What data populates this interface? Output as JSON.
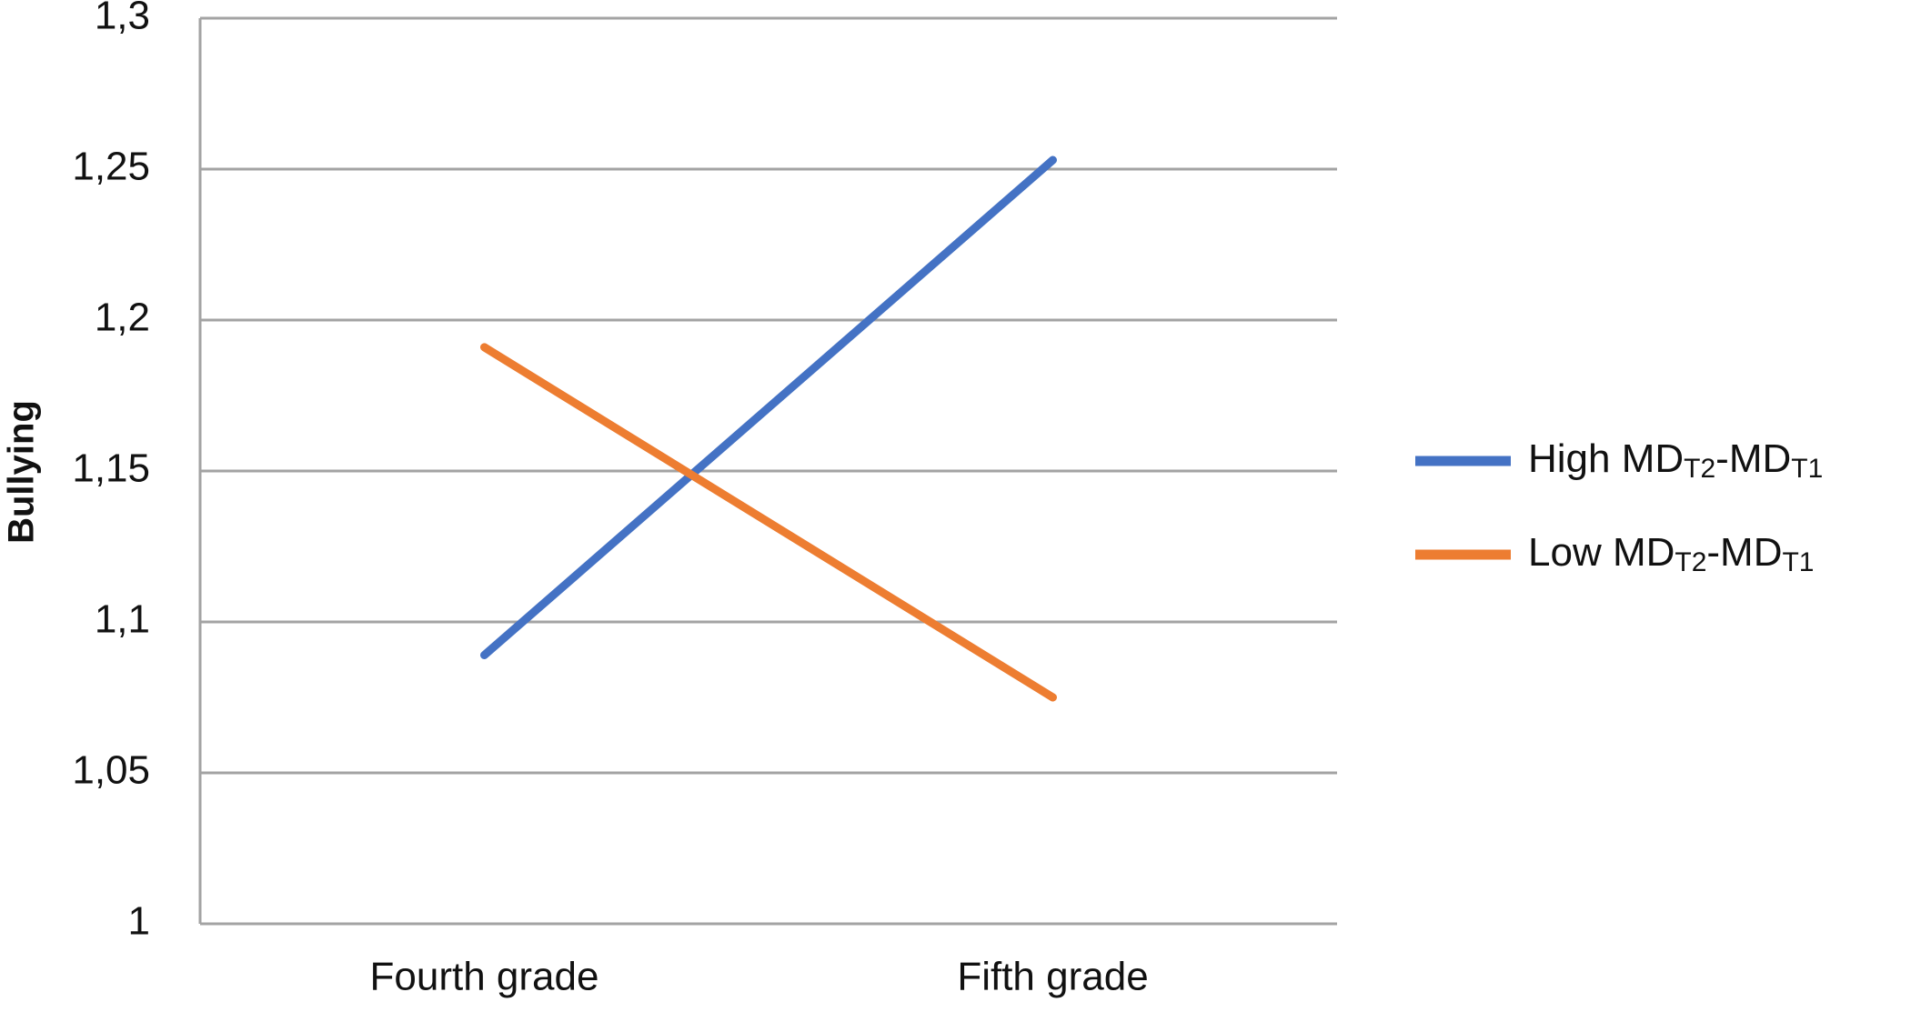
{
  "chart_data": {
    "type": "line",
    "y_label": "Bullying",
    "categories": [
      "Fourth grade",
      "Fifth grade"
    ],
    "series": [
      {
        "name": "High MDT2-MDT1",
        "color": "#4472c4",
        "values": [
          1.089,
          1.253
        ]
      },
      {
        "name": "Low MDT2-MDT1",
        "color": "#ed7d31",
        "values": [
          1.191,
          1.075
        ]
      }
    ],
    "ylim": [
      1,
      1.3
    ],
    "yticks": [
      1,
      {
        "value": 1.05,
        "label": "1,05"
      },
      {
        "value": 1.1,
        "label": "1,1"
      },
      {
        "value": 1.15,
        "label": "1,15"
      },
      {
        "value": 1.2,
        "label": "1,2"
      },
      {
        "value": 1.25,
        "label": "1,25"
      },
      {
        "value": 1.3,
        "label": "1,3"
      }
    ],
    "grid": true,
    "legend": "right"
  }
}
